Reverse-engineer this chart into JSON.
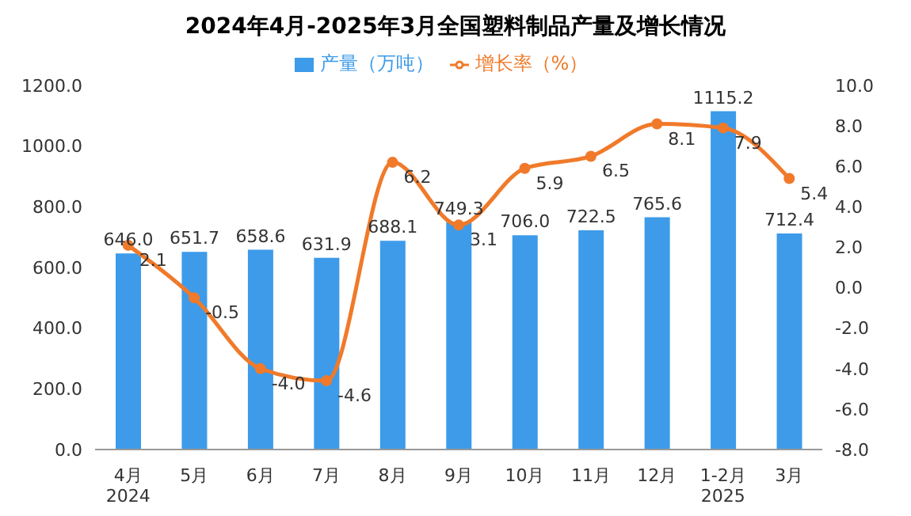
{
  "chart_data": {
    "type": "bar",
    "title": "2024年4月-2025年3月全国塑料制品产量及增长情况",
    "categories": [
      "4月\n2024",
      "5月",
      "6月",
      "7月",
      "8月",
      "9月",
      "10月",
      "11月",
      "12月",
      "1-2月\n2025",
      "3月"
    ],
    "series": [
      {
        "name": "产量（万吨）",
        "color": "#3d9be9",
        "values": [
          646.0,
          651.7,
          658.6,
          631.9,
          688.1,
          749.3,
          706.0,
          722.5,
          765.6,
          1115.2,
          712.4
        ],
        "value_labels": [
          "646.0",
          "651.7",
          "658.6",
          "631.9",
          "688.1",
          "749.3",
          "706.0",
          "722.5",
          "765.6",
          "1115.2",
          "712.4"
        ]
      },
      {
        "name": "增长率（%）",
        "type": "line",
        "axis": "y2",
        "color": "#f07a2a",
        "values": [
          2.1,
          -0.5,
          -4.0,
          -4.6,
          6.2,
          3.1,
          5.9,
          6.5,
          8.1,
          7.9,
          5.4
        ],
        "value_labels": [
          "2.1",
          "-0.5",
          "-4.0",
          "-4.6",
          "6.2",
          "3.1",
          "5.9",
          "6.5",
          "8.1",
          "7.9",
          "5.4"
        ]
      }
    ],
    "ylim": [
      0,
      1200
    ],
    "yticks": [
      {
        "value": 0,
        "label": "0.0"
      },
      {
        "value": 200,
        "label": "200.0"
      },
      {
        "value": 400,
        "label": "400.0"
      },
      {
        "value": 600,
        "label": "600.0"
      },
      {
        "value": 800,
        "label": "800.0"
      },
      {
        "value": 1000,
        "label": "1000.0"
      },
      {
        "value": 1200,
        "label": "1200.0"
      }
    ],
    "y2lim": [
      -8,
      10
    ],
    "y2ticks": [
      {
        "value": -8,
        "label": "-8.0"
      },
      {
        "value": -6,
        "label": "-6.0"
      },
      {
        "value": -4,
        "label": "-4.0"
      },
      {
        "value": -2,
        "label": "-2.0"
      },
      {
        "value": 0,
        "label": "0.0"
      },
      {
        "value": 2,
        "label": "2.0"
      },
      {
        "value": 4,
        "label": "4.0"
      },
      {
        "value": 6,
        "label": "6.0"
      },
      {
        "value": 8,
        "label": "8.0"
      },
      {
        "value": 10,
        "label": "10.0"
      }
    ],
    "legend": "top",
    "marker": "circle",
    "grid": false
  }
}
